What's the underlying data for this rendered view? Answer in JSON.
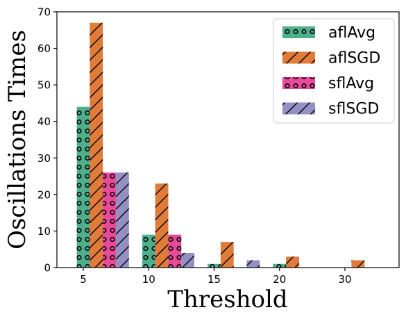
{
  "chart_data": {
    "type": "bar",
    "categories": [
      "5",
      "10",
      "15",
      "20",
      "30"
    ],
    "series": [
      {
        "name": "aflAvg",
        "values": [
          44,
          9,
          1,
          1,
          0
        ],
        "color": "#4daf8c",
        "hatch": "circles"
      },
      {
        "name": "aflSGD",
        "values": [
          67,
          23,
          7,
          3,
          2
        ],
        "color": "#e07b39",
        "hatch": "diagonal"
      },
      {
        "name": "sflAvg",
        "values": [
          26,
          9,
          0,
          0,
          0
        ],
        "color": "#e84a9a",
        "hatch": "circles"
      },
      {
        "name": "sflSGD",
        "values": [
          26,
          4,
          2,
          0,
          0
        ],
        "color": "#9590c4",
        "hatch": "diagonal"
      }
    ],
    "xlabel": "Threshold",
    "ylabel": "Oscillations Times",
    "ylim": [
      0,
      70
    ],
    "yticks": [
      0,
      10,
      20,
      30,
      40,
      50,
      60,
      70
    ],
    "grid": false,
    "legend_position": "top-right"
  }
}
